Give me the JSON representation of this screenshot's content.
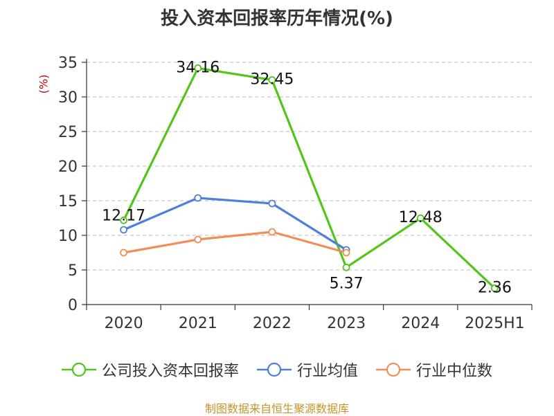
{
  "title": "投入资本回报率历年情况(%)",
  "unit_label": "(%)",
  "source": "制图数据来自恒生聚源数据库",
  "chart_data": {
    "type": "line",
    "title": "投入资本回报率历年情况(%)",
    "ylabel": "(%)",
    "xlabel": "",
    "categories": [
      "2020",
      "2021",
      "2022",
      "2023",
      "2024",
      "2025H1"
    ],
    "ylim": [
      0,
      35
    ],
    "yticks": [
      0,
      5,
      10,
      15,
      20,
      25,
      30,
      35
    ],
    "grid": true,
    "legend_position": "bottom",
    "series": [
      {
        "name": "公司投入资本回报率",
        "color": "#52c41a",
        "values": [
          12.17,
          34.16,
          32.45,
          5.37,
          12.48,
          2.36
        ],
        "labels": [
          "12.17",
          "34.16",
          "32.45",
          "5.37",
          "12.48",
          "2.36"
        ]
      },
      {
        "name": "行业均值",
        "color": "#4e7fdc",
        "values": [
          10.8,
          15.4,
          14.6,
          7.9,
          null,
          null
        ]
      },
      {
        "name": "行业中位数",
        "color": "#f28d5a",
        "values": [
          7.5,
          9.4,
          10.5,
          7.5,
          null,
          null
        ]
      }
    ]
  }
}
